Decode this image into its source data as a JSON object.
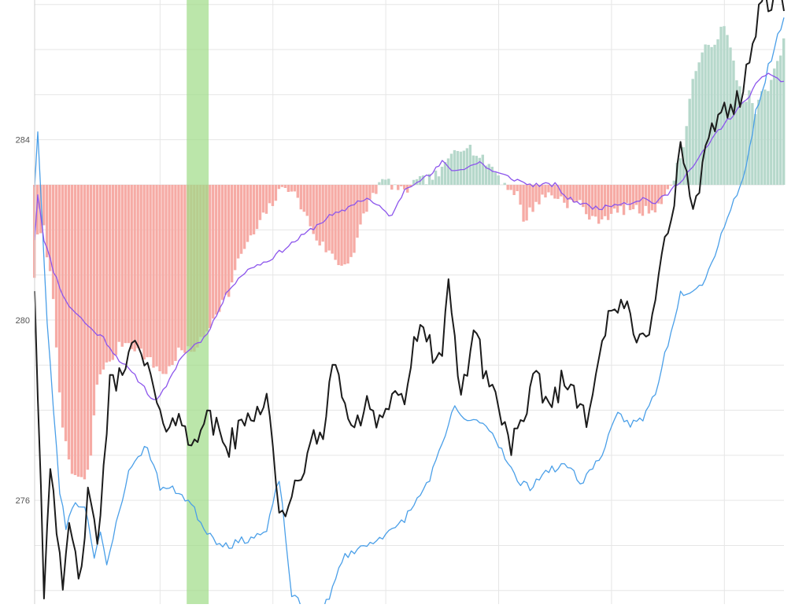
{
  "colors": {
    "price_line": "#1c1c1c",
    "lower_band": "#4a9fe8",
    "moving_average": "#8c55ec",
    "bar_negative": "#f6aba5",
    "bar_positive": "#b6d8cb",
    "highlight_band": "#9edc86",
    "grid": "#e6e6e6",
    "tick_text": "#555555"
  },
  "chart_data": {
    "type": "line",
    "title": "",
    "xlabel": "",
    "ylabel": "",
    "ylim": [
      273.7,
      287.1
    ],
    "y_ticks": [
      276,
      280,
      284
    ],
    "y_tick_labels": [
      "276",
      "280",
      "284"
    ],
    "x_count": 240,
    "x_grid": [
      40,
      76,
      112,
      148,
      184,
      220
    ],
    "highlight": {
      "x_start": 48.5,
      "x_end": 55.5
    },
    "histogram_baseline": 283.0,
    "grid": true,
    "legend": "none",
    "price_keypoints": [
      [
        0,
        280.8
      ],
      [
        3,
        274.0
      ],
      [
        5,
        277.0
      ],
      [
        7,
        275.5
      ],
      [
        9,
        273.7
      ],
      [
        11,
        275.5
      ],
      [
        14,
        274.2
      ],
      [
        17,
        276.0
      ],
      [
        20,
        275.0
      ],
      [
        24,
        278.5
      ],
      [
        28,
        278.8
      ],
      [
        30,
        279.6
      ],
      [
        33,
        279.2
      ],
      [
        36,
        279.0
      ],
      [
        40,
        277.7
      ],
      [
        45,
        277.9
      ],
      [
        49,
        277.3
      ],
      [
        54,
        277.8
      ],
      [
        58,
        277.6
      ],
      [
        62,
        277.2
      ],
      [
        66,
        277.6
      ],
      [
        70,
        278.0
      ],
      [
        74,
        278.3
      ],
      [
        76,
        277.2
      ],
      [
        78,
        275.9
      ],
      [
        80,
        275.4
      ],
      [
        84,
        276.5
      ],
      [
        88,
        277.2
      ],
      [
        92,
        277.4
      ],
      [
        94,
        278.9
      ],
      [
        98,
        278.5
      ],
      [
        102,
        277.4
      ],
      [
        106,
        278.3
      ],
      [
        110,
        277.8
      ],
      [
        114,
        278.3
      ],
      [
        118,
        278.3
      ],
      [
        122,
        279.7
      ],
      [
        126,
        279.4
      ],
      [
        130,
        279.2
      ],
      [
        132,
        280.6
      ],
      [
        136,
        278.3
      ],
      [
        140,
        279.8
      ],
      [
        143,
        279.0
      ],
      [
        147,
        278.3
      ],
      [
        150,
        277.6
      ],
      [
        152,
        277.3
      ],
      [
        156,
        277.6
      ],
      [
        160,
        278.8
      ],
      [
        164,
        278.1
      ],
      [
        168,
        278.6
      ],
      [
        172,
        278.5
      ],
      [
        176,
        277.9
      ],
      [
        180,
        279.3
      ],
      [
        184,
        280.1
      ],
      [
        188,
        280.4
      ],
      [
        192,
        279.4
      ],
      [
        196,
        279.9
      ],
      [
        200,
        281.5
      ],
      [
        203,
        282.0
      ],
      [
        206,
        284.0
      ],
      [
        210,
        282.3
      ],
      [
        213,
        283.3
      ],
      [
        217,
        284.4
      ],
      [
        221,
        284.8
      ],
      [
        225,
        284.9
      ],
      [
        228,
        285.6
      ],
      [
        231,
        287.0
      ],
      [
        235,
        287.1
      ],
      [
        239,
        287.1
      ]
    ],
    "lower_keypoints": [
      [
        0,
        283.0
      ],
      [
        1,
        284.2
      ],
      [
        4,
        279.9
      ],
      [
        8,
        276.2
      ],
      [
        10,
        275.4
      ],
      [
        12,
        275.9
      ],
      [
        16,
        275.9
      ],
      [
        19,
        274.8
      ],
      [
        21,
        275.3
      ],
      [
        23,
        274.5
      ],
      [
        27,
        275.8
      ],
      [
        30,
        276.6
      ],
      [
        33,
        277.0
      ],
      [
        36,
        277.2
      ],
      [
        40,
        276.3
      ],
      [
        46,
        276.2
      ],
      [
        50,
        275.9
      ],
      [
        54,
        275.4
      ],
      [
        58,
        275.1
      ],
      [
        62,
        275.0
      ],
      [
        66,
        275.1
      ],
      [
        70,
        275.2
      ],
      [
        74,
        275.3
      ],
      [
        78,
        276.5
      ],
      [
        82,
        273.9
      ],
      [
        86,
        273.6
      ],
      [
        90,
        273.5
      ],
      [
        94,
        273.8
      ],
      [
        98,
        274.7
      ],
      [
        102,
        274.9
      ],
      [
        106,
        275.0
      ],
      [
        110,
        275.2
      ],
      [
        114,
        275.3
      ],
      [
        118,
        275.6
      ],
      [
        122,
        276.0
      ],
      [
        126,
        276.5
      ],
      [
        130,
        277.2
      ],
      [
        134,
        278.1
      ],
      [
        138,
        277.7
      ],
      [
        142,
        277.8
      ],
      [
        146,
        277.5
      ],
      [
        150,
        277.0
      ],
      [
        154,
        276.4
      ],
      [
        158,
        276.3
      ],
      [
        162,
        276.6
      ],
      [
        166,
        276.7
      ],
      [
        170,
        276.8
      ],
      [
        174,
        276.4
      ],
      [
        178,
        276.7
      ],
      [
        182,
        277.2
      ],
      [
        186,
        277.9
      ],
      [
        190,
        277.7
      ],
      [
        194,
        277.8
      ],
      [
        198,
        278.4
      ],
      [
        202,
        279.5
      ],
      [
        206,
        280.6
      ],
      [
        210,
        280.7
      ],
      [
        214,
        280.9
      ],
      [
        218,
        281.7
      ],
      [
        222,
        282.5
      ],
      [
        226,
        283.1
      ],
      [
        230,
        284.6
      ],
      [
        234,
        285.6
      ],
      [
        238,
        286.5
      ],
      [
        239,
        286.8
      ]
    ],
    "ma_keypoints": [
      [
        0,
        281.8
      ],
      [
        1,
        282.8
      ],
      [
        3,
        281.8
      ],
      [
        6,
        281.1
      ],
      [
        10,
        280.4
      ],
      [
        14,
        280.1
      ],
      [
        18,
        279.8
      ],
      [
        22,
        279.6
      ],
      [
        26,
        279.2
      ],
      [
        30,
        278.9
      ],
      [
        34,
        278.6
      ],
      [
        38,
        278.2
      ],
      [
        42,
        278.5
      ],
      [
        46,
        279.1
      ],
      [
        50,
        279.4
      ],
      [
        54,
        279.6
      ],
      [
        58,
        280.1
      ],
      [
        62,
        280.7
      ],
      [
        66,
        281.0
      ],
      [
        70,
        281.2
      ],
      [
        74,
        281.3
      ],
      [
        78,
        281.5
      ],
      [
        82,
        281.7
      ],
      [
        86,
        281.9
      ],
      [
        90,
        282.1
      ],
      [
        94,
        282.3
      ],
      [
        98,
        282.4
      ],
      [
        102,
        282.6
      ],
      [
        106,
        282.7
      ],
      [
        110,
        282.5
      ],
      [
        114,
        282.3
      ],
      [
        118,
        282.9
      ],
      [
        122,
        283.1
      ],
      [
        126,
        283.2
      ],
      [
        130,
        283.5
      ],
      [
        134,
        283.3
      ],
      [
        138,
        283.4
      ],
      [
        142,
        283.5
      ],
      [
        146,
        283.3
      ],
      [
        150,
        283.2
      ],
      [
        154,
        283.1
      ],
      [
        158,
        283.0
      ],
      [
        162,
        283.0
      ],
      [
        166,
        283.0
      ],
      [
        170,
        282.7
      ],
      [
        174,
        282.6
      ],
      [
        178,
        282.5
      ],
      [
        182,
        282.5
      ],
      [
        186,
        282.6
      ],
      [
        190,
        282.6
      ],
      [
        194,
        282.7
      ],
      [
        198,
        282.6
      ],
      [
        202,
        282.8
      ],
      [
        206,
        283.1
      ],
      [
        210,
        283.4
      ],
      [
        214,
        283.8
      ],
      [
        218,
        284.2
      ],
      [
        222,
        284.5
      ],
      [
        226,
        284.8
      ],
      [
        230,
        285.2
      ],
      [
        234,
        285.5
      ],
      [
        238,
        285.3
      ],
      [
        239,
        285.3
      ]
    ],
    "histogram_keypoints": [
      [
        0,
        281.0
      ],
      [
        1,
        281.8
      ],
      [
        3,
        282.0
      ],
      [
        6,
        280.5
      ],
      [
        9,
        277.5
      ],
      [
        12,
        276.6
      ],
      [
        14,
        276.5
      ],
      [
        16,
        276.4
      ],
      [
        18,
        277.0
      ],
      [
        20,
        278.6
      ],
      [
        22,
        279.0
      ],
      [
        24,
        279.0
      ],
      [
        26,
        279.3
      ],
      [
        28,
        279.5
      ],
      [
        30,
        279.5
      ],
      [
        34,
        279.3
      ],
      [
        38,
        279.0
      ],
      [
        42,
        278.8
      ],
      [
        46,
        279.3
      ],
      [
        50,
        279.3
      ],
      [
        54,
        279.6
      ],
      [
        58,
        280.2
      ],
      [
        62,
        280.6
      ],
      [
        66,
        281.5
      ],
      [
        70,
        281.9
      ],
      [
        74,
        282.4
      ],
      [
        78,
        282.8
      ],
      [
        80,
        283.0
      ],
      [
        82,
        282.9
      ],
      [
        86,
        282.4
      ],
      [
        90,
        281.8
      ],
      [
        94,
        281.5
      ],
      [
        98,
        281.2
      ],
      [
        102,
        281.5
      ],
      [
        105,
        282.3
      ],
      [
        108,
        282.8
      ],
      [
        110,
        283.0
      ],
      [
        112,
        283.1
      ],
      [
        114,
        283.0
      ],
      [
        118,
        282.8
      ],
      [
        120,
        283.0
      ],
      [
        124,
        283.1
      ],
      [
        128,
        283.2
      ],
      [
        130,
        283.3
      ],
      [
        134,
        283.8
      ],
      [
        138,
        283.9
      ],
      [
        142,
        283.6
      ],
      [
        146,
        283.4
      ],
      [
        150,
        283.0
      ],
      [
        154,
        282.8
      ],
      [
        156,
        282.2
      ],
      [
        160,
        282.6
      ],
      [
        164,
        282.8
      ],
      [
        168,
        282.7
      ],
      [
        170,
        282.6
      ],
      [
        174,
        282.6
      ],
      [
        178,
        282.2
      ],
      [
        182,
        282.3
      ],
      [
        186,
        282.4
      ],
      [
        190,
        282.5
      ],
      [
        194,
        282.4
      ],
      [
        198,
        282.5
      ],
      [
        202,
        282.8
      ],
      [
        206,
        283.6
      ],
      [
        208,
        284.3
      ],
      [
        210,
        285.4
      ],
      [
        214,
        286.0
      ],
      [
        218,
        286.3
      ],
      [
        220,
        286.5
      ],
      [
        222,
        286.0
      ],
      [
        224,
        285.4
      ],
      [
        226,
        284.9
      ],
      [
        228,
        285.0
      ],
      [
        230,
        284.6
      ],
      [
        232,
        285.0
      ],
      [
        234,
        285.2
      ],
      [
        236,
        285.5
      ],
      [
        238,
        285.8
      ],
      [
        239,
        286.3
      ]
    ]
  }
}
